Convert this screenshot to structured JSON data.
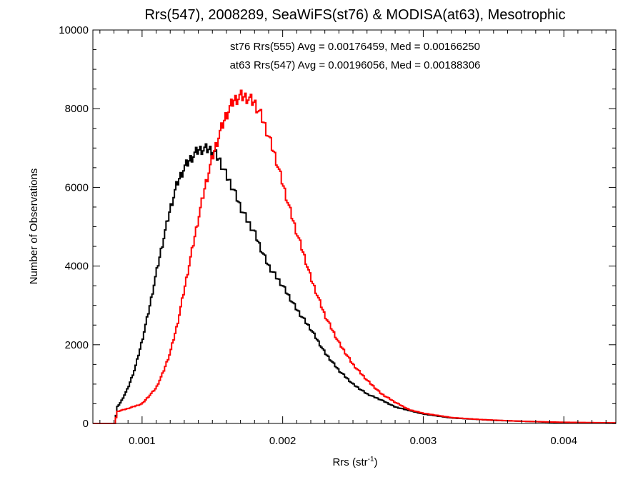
{
  "chart_data": {
    "type": "line",
    "title": "Rrs(547), 2008289, SeaWiFS(st76) & MODISA(at63), Mesotrophic",
    "xlabel_base": "Rrs (str",
    "xlabel_sup": "-1",
    "xlabel_close": ")",
    "ylabel": "Number of Observations",
    "xlim": [
      0.00065,
      0.00437
    ],
    "ylim": [
      0,
      10000
    ],
    "x_ticks": [
      0.001,
      0.002,
      0.003,
      0.004
    ],
    "x_tick_labels": [
      "0.001",
      "0.002",
      "0.003",
      "0.004"
    ],
    "y_ticks": [
      0,
      2000,
      4000,
      6000,
      8000,
      10000
    ],
    "y_tick_labels": [
      "0",
      "2000",
      "4000",
      "6000",
      "8000",
      "10000"
    ],
    "grid": false,
    "legend_position": "top-center",
    "annotations": [
      {
        "text": "st76 Rrs(555) Avg = 0.00176459, Med = 0.00166250",
        "color": "#000000"
      },
      {
        "text": "at63 Rrs(547) Avg = 0.00196056, Med = 0.00188306",
        "color": "#ff0000"
      }
    ],
    "series": [
      {
        "color": "#000000",
        "x": [
          0.00065,
          0.00081,
          0.00082,
          0.00085,
          0.0009,
          0.00095,
          0.001,
          0.00105,
          0.0011,
          0.00115,
          0.0012,
          0.00125,
          0.0013,
          0.00135,
          0.0014,
          0.00145,
          0.0015,
          0.00155,
          0.0016,
          0.00165,
          0.0017,
          0.00175,
          0.0018,
          0.00185,
          0.0019,
          0.002,
          0.0021,
          0.0022,
          0.0023,
          0.0024,
          0.0025,
          0.0026,
          0.0027,
          0.0028,
          0.003,
          0.0032,
          0.0035,
          0.004,
          0.00437
        ],
        "y": [
          0,
          0,
          400,
          550,
          900,
          1400,
          2100,
          2900,
          3800,
          4650,
          5450,
          6100,
          6500,
          6750,
          6950,
          6980,
          6950,
          6700,
          6300,
          5950,
          5500,
          5150,
          4850,
          4400,
          4000,
          3500,
          2900,
          2400,
          1800,
          1350,
          1000,
          750,
          600,
          420,
          240,
          140,
          80,
          20,
          5
        ]
      },
      {
        "color": "#ff0000",
        "x": [
          0.00065,
          0.00081,
          0.00082,
          0.0009,
          0.001,
          0.00105,
          0.0011,
          0.00115,
          0.0012,
          0.00125,
          0.0013,
          0.00135,
          0.0014,
          0.00145,
          0.0015,
          0.00155,
          0.0016,
          0.00165,
          0.0017,
          0.00175,
          0.0018,
          0.00185,
          0.0019,
          0.00195,
          0.002,
          0.00205,
          0.0021,
          0.00215,
          0.0022,
          0.0023,
          0.0024,
          0.0025,
          0.0026,
          0.0027,
          0.0028,
          0.0029,
          0.003,
          0.0032,
          0.0034,
          0.0037,
          0.004,
          0.00437
        ],
        "y": [
          0,
          0,
          300,
          380,
          500,
          700,
          900,
          1300,
          1800,
          2500,
          3400,
          4300,
          5200,
          6050,
          6750,
          7350,
          7850,
          8200,
          8320,
          8280,
          8150,
          7800,
          7300,
          6750,
          6100,
          5450,
          4850,
          4300,
          3700,
          2750,
          2050,
          1500,
          1100,
          760,
          540,
          350,
          260,
          150,
          100,
          55,
          30,
          15
        ]
      }
    ]
  }
}
